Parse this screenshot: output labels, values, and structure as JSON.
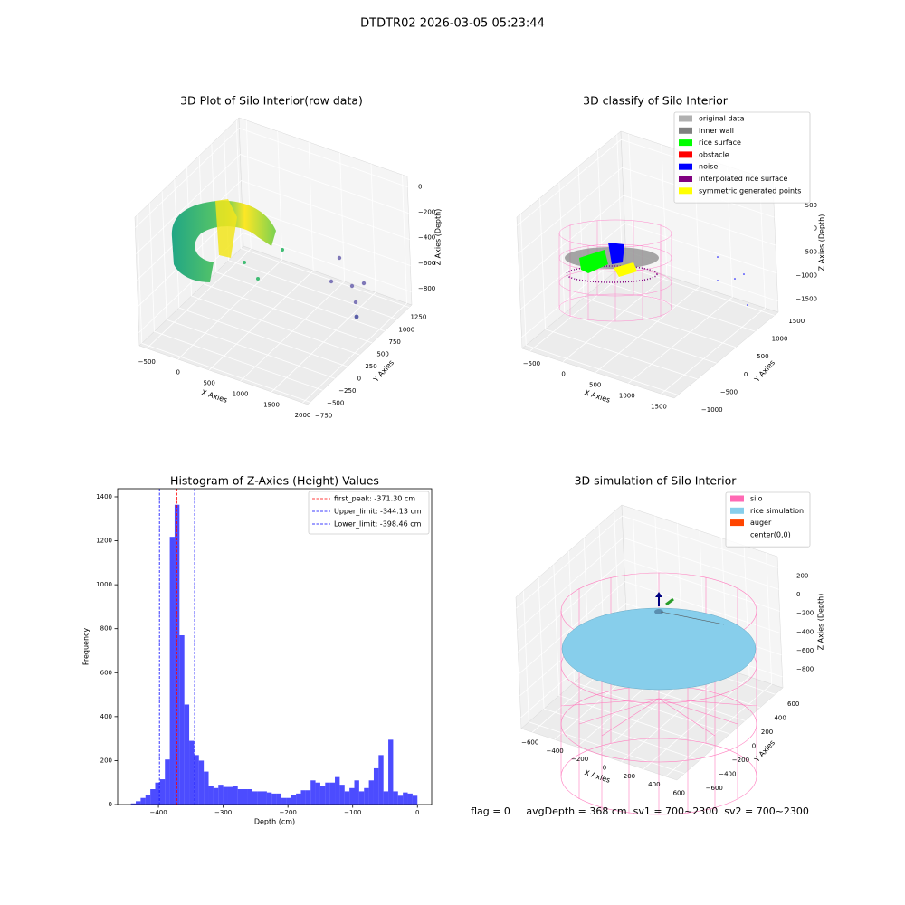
{
  "title": "DTDTR02 2026-03-05 05:23:44",
  "chart_data": [
    {
      "type": "scatter3d",
      "title": "3D Plot of Silo Interior(row data)",
      "xlabel": "X Axies",
      "ylabel": "Y Axies",
      "zlabel": "Z Axies (Depth)",
      "xlim": [
        -620,
        2080
      ],
      "xticks": [
        {
          "value": -500,
          "label": "−500"
        },
        0,
        500,
        1000,
        1500,
        2000
      ],
      "ylim": [
        -800,
        1300
      ],
      "yticks": [
        {
          "value": -750,
          "label": "−750"
        },
        {
          "value": -500,
          "label": "−500"
        },
        {
          "value": -250,
          "label": "−250"
        },
        0,
        250,
        500,
        750,
        1000,
        1250
      ],
      "zlim": [
        -900,
        80
      ],
      "zticks": [
        0,
        {
          "value": -200,
          "label": "−200"
        },
        {
          "value": -400,
          "label": "−400"
        },
        {
          "value": -600,
          "label": "−600"
        },
        {
          "value": -800,
          "label": "−800"
        }
      ],
      "grid": true
    },
    {
      "type": "scatter3d",
      "title": "3D classify of Silo Interior",
      "xlabel": "X Axies",
      "ylabel": "Y Axies",
      "zlabel": "Z Axies (Depth)",
      "xlim": [
        -620,
        1700
      ],
      "xticks": [
        {
          "value": -500,
          "label": "−500"
        },
        0,
        500,
        1000,
        1500
      ],
      "ylim": [
        -1100,
        1600
      ],
      "yticks": [
        {
          "value": -1000,
          "label": "−1000"
        },
        {
          "value": -500,
          "label": "−500"
        },
        0,
        500,
        1000,
        1500
      ],
      "zlim": [
        -1700,
        650
      ],
      "zticks": [
        500,
        0,
        {
          "value": -500,
          "label": "−500"
        },
        {
          "value": -1000,
          "label": "−1000"
        },
        {
          "value": -1500,
          "label": "−1500"
        }
      ],
      "grid": true,
      "legend_loc": "upper right",
      "legend": [
        {
          "name": "original data",
          "color": "#b0b0b0"
        },
        {
          "name": "inner wall",
          "color": "#808080"
        },
        {
          "name": "rice surface",
          "color": "#00ff00"
        },
        {
          "name": "obstacle",
          "color": "#ff0000"
        },
        {
          "name": "noise",
          "color": "#0000ff"
        },
        {
          "name": "interpolated rice surface",
          "color": "#800080"
        },
        {
          "name": "symmetric generated points",
          "color": "#ffff00"
        }
      ]
    },
    {
      "type": "histogram",
      "title": "Histogram of Z-Axies (Height) Values",
      "xlabel": "Depth (cm)",
      "ylabel": "Frequency",
      "color": "#0000ff",
      "xlim": [
        -463,
        22
      ],
      "xticks": [
        {
          "value": -400,
          "label": "−400"
        },
        {
          "value": -300,
          "label": "−300"
        },
        {
          "value": -200,
          "label": "−200"
        },
        {
          "value": -100,
          "label": "−100"
        },
        0
      ],
      "ylim": [
        0,
        1437
      ],
      "yticks": [
        0,
        200,
        400,
        600,
        800,
        1000,
        1200,
        1400
      ],
      "bins": [
        -450,
        -442.5,
        -435,
        -427.5,
        -420,
        -412.5,
        -405,
        -397.5,
        -390,
        -382.5,
        -375,
        -367.5,
        -360,
        -352.5,
        -345,
        -337.5,
        -330,
        -322.5,
        -315,
        -307.5,
        -300,
        -292.5,
        -285,
        -277.5,
        -270,
        -262.5,
        -255,
        -247.5,
        -240,
        -232.5,
        -225,
        -217.5,
        -210,
        -202.5,
        -195,
        -187.5,
        -180,
        -172.5,
        -165,
        -157.5,
        -150,
        -142.5,
        -135,
        -127.5,
        -120,
        -112.5,
        -105,
        -97.5,
        -90,
        -82.5,
        -75,
        -67.5,
        -60,
        -52.5,
        -45,
        -37.5,
        -30,
        -22.5,
        -15,
        -7.5,
        0
      ],
      "values": [
        0,
        5,
        15,
        30,
        45,
        70,
        100,
        115,
        205,
        1218,
        1364,
        770,
        455,
        290,
        225,
        200,
        150,
        85,
        75,
        90,
        80,
        80,
        85,
        70,
        70,
        70,
        60,
        60,
        60,
        55,
        50,
        50,
        30,
        30,
        45,
        50,
        65,
        65,
        110,
        100,
        85,
        100,
        100,
        125,
        90,
        60,
        75,
        110,
        60,
        75,
        110,
        165,
        225,
        60,
        295,
        60,
        40,
        55,
        50,
        40
      ],
      "legend_loc": "upper right",
      "vlines": [
        {
          "value": -371.3,
          "label": "first_peak: -371.30 cm",
          "color": "#ff0000"
        },
        {
          "value": -344.13,
          "label": "Upper_limit: -344.13 cm",
          "color": "#0000ff"
        },
        {
          "value": -398.46,
          "label": "Lower_limit: -398.46 cm",
          "color": "#0000ff"
        }
      ]
    },
    {
      "type": "scatter3d",
      "title": "3D simulation of Silo Interior",
      "xlabel": "X Axies",
      "ylabel": "Y Axies",
      "zlabel": "Z Axies (Depth)",
      "xlim": [
        -700,
        700
      ],
      "xticks": [
        {
          "value": -600,
          "label": "−600"
        },
        {
          "value": -400,
          "label": "−400"
        },
        {
          "value": -200,
          "label": "−200"
        },
        0,
        200,
        400,
        600
      ],
      "ylim": [
        -700,
        700
      ],
      "yticks": [
        {
          "value": -600,
          "label": "−600"
        },
        {
          "value": -400,
          "label": "−400"
        },
        {
          "value": -200,
          "label": "−200"
        },
        0,
        200,
        400,
        600
      ],
      "zlim": [
        -900,
        300
      ],
      "zticks": [
        200,
        0,
        {
          "value": -200,
          "label": "−200"
        },
        {
          "value": -400,
          "label": "−400"
        },
        {
          "value": -600,
          "label": "−600"
        },
        {
          "value": -800,
          "label": "−800"
        }
      ],
      "grid": true,
      "legend_loc": "upper right",
      "legend": [
        {
          "name": "silo",
          "color": "#ff69b4"
        },
        {
          "name": "rice simulation",
          "color": "#87ceeb"
        },
        {
          "name": "auger",
          "color": "#ff4500"
        },
        {
          "name": "center(0,0)",
          "color": "#ffffff"
        }
      ],
      "annotation": "flag = 0     avgDepth = 368 cm  sv1 = 700~2300  sv2 = 700~2300"
    }
  ]
}
